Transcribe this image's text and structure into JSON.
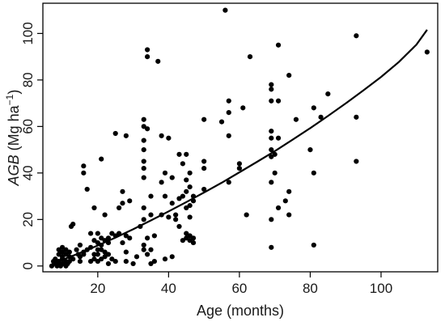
{
  "chart_data": {
    "type": "scatter",
    "title": "",
    "xlabel": "Age (months)",
    "ylabel": {
      "italic": "AGB",
      "rest": " (Mg ha",
      "sup": "−1",
      "close": ")"
    },
    "xlim": [
      4.5,
      116
    ],
    "ylim": [
      -2.5,
      113
    ],
    "xticks": [
      20,
      40,
      60,
      80,
      100
    ],
    "yticks": [
      0,
      20,
      40,
      60,
      80,
      100
    ],
    "grid": false,
    "legend": "none",
    "point_color": "#000000",
    "curve_color": "#000000",
    "points": [
      [
        7,
        0
      ],
      [
        7.5,
        2
      ],
      [
        8,
        1
      ],
      [
        8,
        3
      ],
      [
        8.5,
        0
      ],
      [
        9,
        1
      ],
      [
        9,
        2
      ],
      [
        9,
        5
      ],
      [
        9,
        7
      ],
      [
        9.5,
        0
      ],
      [
        10,
        1
      ],
      [
        10,
        3
      ],
      [
        10,
        4
      ],
      [
        10,
        6
      ],
      [
        10,
        8
      ],
      [
        10.5,
        1
      ],
      [
        11,
        0
      ],
      [
        11,
        2
      ],
      [
        11,
        5
      ],
      [
        11,
        7
      ],
      [
        11.5,
        1
      ],
      [
        12,
        2
      ],
      [
        12,
        4
      ],
      [
        12,
        6
      ],
      [
        12.5,
        17
      ],
      [
        13,
        3
      ],
      [
        13,
        18
      ],
      [
        14,
        7
      ],
      [
        14.5,
        5
      ],
      [
        15,
        2
      ],
      [
        15,
        4
      ],
      [
        15,
        9
      ],
      [
        16,
        5
      ],
      [
        16,
        6
      ],
      [
        16,
        40
      ],
      [
        16,
        43
      ],
      [
        17,
        7
      ],
      [
        17,
        33
      ],
      [
        18,
        2
      ],
      [
        18,
        8
      ],
      [
        18,
        14
      ],
      [
        19,
        3
      ],
      [
        19,
        5
      ],
      [
        19,
        11
      ],
      [
        19,
        25
      ],
      [
        20,
        2
      ],
      [
        20,
        5
      ],
      [
        20,
        7
      ],
      [
        20,
        10
      ],
      [
        20,
        14
      ],
      [
        21,
        3
      ],
      [
        21,
        7
      ],
      [
        21,
        9
      ],
      [
        21,
        12
      ],
      [
        21,
        46
      ],
      [
        22,
        4
      ],
      [
        22,
        6
      ],
      [
        22,
        11
      ],
      [
        22,
        22
      ],
      [
        23,
        1
      ],
      [
        23,
        5
      ],
      [
        23,
        10
      ],
      [
        23,
        12
      ],
      [
        24,
        3
      ],
      [
        24,
        14
      ],
      [
        25,
        2
      ],
      [
        25,
        13
      ],
      [
        25,
        57
      ],
      [
        26,
        14
      ],
      [
        26,
        25
      ],
      [
        27,
        10
      ],
      [
        27,
        27
      ],
      [
        27,
        32
      ],
      [
        28,
        2
      ],
      [
        28,
        6
      ],
      [
        28,
        13
      ],
      [
        28,
        56
      ],
      [
        29,
        12
      ],
      [
        29,
        28
      ],
      [
        30,
        1
      ],
      [
        31,
        4
      ],
      [
        32,
        17
      ],
      [
        33,
        7
      ],
      [
        33,
        9
      ],
      [
        33,
        20
      ],
      [
        33,
        25
      ],
      [
        33,
        38
      ],
      [
        33,
        42
      ],
      [
        33,
        45
      ],
      [
        33,
        50
      ],
      [
        33,
        54
      ],
      [
        33,
        60
      ],
      [
        33,
        63
      ],
      [
        34,
        5
      ],
      [
        34,
        12
      ],
      [
        34,
        59
      ],
      [
        34,
        90
      ],
      [
        34,
        93
      ],
      [
        35,
        1
      ],
      [
        35,
        7
      ],
      [
        35,
        22
      ],
      [
        35,
        30
      ],
      [
        36,
        2
      ],
      [
        36,
        13
      ],
      [
        37,
        88
      ],
      [
        38,
        22
      ],
      [
        38,
        36
      ],
      [
        38,
        56
      ],
      [
        39,
        3
      ],
      [
        39,
        30
      ],
      [
        39,
        40
      ],
      [
        40,
        21
      ],
      [
        40,
        55
      ],
      [
        41,
        4
      ],
      [
        41,
        27
      ],
      [
        41,
        38
      ],
      [
        42,
        20
      ],
      [
        42,
        22
      ],
      [
        43,
        17
      ],
      [
        43,
        29
      ],
      [
        43,
        48
      ],
      [
        44,
        11
      ],
      [
        44,
        30
      ],
      [
        44,
        44
      ],
      [
        45,
        12
      ],
      [
        45,
        14
      ],
      [
        45,
        25
      ],
      [
        45,
        32
      ],
      [
        45,
        37
      ],
      [
        45,
        48
      ],
      [
        46,
        11
      ],
      [
        46,
        13
      ],
      [
        46,
        21
      ],
      [
        46,
        26
      ],
      [
        46,
        34
      ],
      [
        46,
        40
      ],
      [
        47,
        10
      ],
      [
        47,
        12
      ],
      [
        47,
        28
      ],
      [
        47,
        30
      ],
      [
        50,
        33
      ],
      [
        50,
        42
      ],
      [
        50,
        45
      ],
      [
        50,
        63
      ],
      [
        55,
        62
      ],
      [
        56,
        110
      ],
      [
        57,
        36
      ],
      [
        57,
        56
      ],
      [
        57,
        66
      ],
      [
        57,
        71
      ],
      [
        60,
        42
      ],
      [
        60,
        44
      ],
      [
        61,
        68
      ],
      [
        62,
        22
      ],
      [
        63,
        90
      ],
      [
        69,
        8
      ],
      [
        69,
        20
      ],
      [
        69,
        36
      ],
      [
        69,
        47
      ],
      [
        69,
        50
      ],
      [
        69,
        55
      ],
      [
        69,
        58
      ],
      [
        69,
        71
      ],
      [
        69,
        76
      ],
      [
        69,
        78
      ],
      [
        70,
        40
      ],
      [
        70,
        48
      ],
      [
        71,
        25
      ],
      [
        71,
        55
      ],
      [
        71,
        71
      ],
      [
        71,
        95
      ],
      [
        73,
        28
      ],
      [
        74,
        22
      ],
      [
        74,
        32
      ],
      [
        74,
        82
      ],
      [
        76,
        63
      ],
      [
        80,
        50
      ],
      [
        81,
        9
      ],
      [
        81,
        40
      ],
      [
        81,
        68
      ],
      [
        83,
        64
      ],
      [
        85,
        74
      ],
      [
        93,
        45
      ],
      [
        93,
        64
      ],
      [
        93,
        99
      ],
      [
        113,
        92
      ]
    ],
    "fit_curve": {
      "x": [
        7,
        10,
        15,
        20,
        25,
        30,
        35,
        40,
        45,
        50,
        55,
        60,
        65,
        70,
        75,
        80,
        85,
        90,
        95,
        100,
        105,
        110,
        113
      ],
      "y": [
        1.2,
        2.7,
        5.6,
        8.8,
        12.2,
        15.8,
        19.6,
        23.5,
        27.5,
        31.6,
        35.8,
        40.3,
        44.8,
        49.4,
        54.3,
        59.3,
        64.5,
        69.9,
        75.5,
        81.3,
        87.7,
        95.2,
        101.6
      ]
    }
  }
}
